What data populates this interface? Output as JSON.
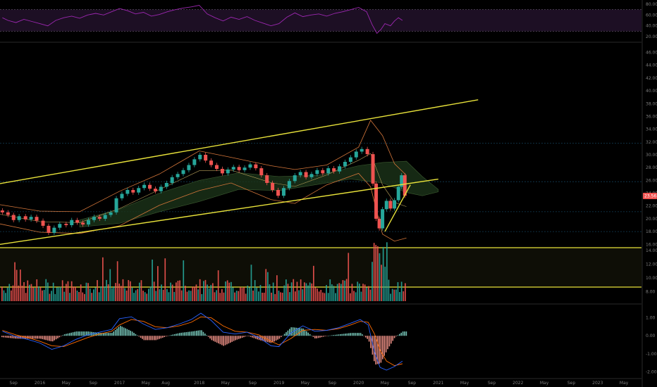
{
  "chart_data": {
    "type": "candlestick",
    "title": "",
    "colors": {
      "background": "#000000",
      "up": "#26a69a",
      "down": "#ef5350",
      "trendline": "#e8e23a",
      "rsi": "#9c27b0",
      "rsi_band": "#1d0f24",
      "bollinger": "#d4763a",
      "ichimoku_cloud": "#1b3319",
      "macd": "#2962ff",
      "signal": "#ff6d00",
      "grid": "#123c55"
    },
    "x_axis": {
      "labels": [
        "Sep",
        "2016",
        "May",
        "Sep",
        "2017",
        "May",
        "Aug",
        "2018",
        "May",
        "Sep",
        "2019",
        "May",
        "Sep",
        "2020",
        "May",
        "Sep",
        "2021",
        "May",
        "Sep",
        "2022",
        "May",
        "Sep",
        "2023",
        "May"
      ],
      "label_dates": [
        2015.67,
        2016.0,
        2016.33,
        2016.67,
        2017.0,
        2017.33,
        2017.58,
        2018.0,
        2018.33,
        2018.67,
        2019.0,
        2019.33,
        2019.67,
        2020.0,
        2020.33,
        2020.67,
        2021.0,
        2021.33,
        2021.67,
        2022.0,
        2022.33,
        2022.67,
        2023.0,
        2023.33
      ],
      "range": [
        2015.5,
        2023.55
      ]
    },
    "price_panel": {
      "y_ticks": [
        "46.00",
        "44.00",
        "42.00",
        "40.00",
        "38.00",
        "36.00",
        "34.00",
        "32.00",
        "30.00",
        "28.00",
        "26.00",
        "24.00",
        "22.00",
        "20.00",
        "18.00",
        "16.00",
        "14.00",
        "12.00",
        "10.00",
        "8.00"
      ],
      "y_values": [
        46,
        44,
        42,
        40,
        38,
        36,
        34,
        32,
        30,
        28,
        26,
        24,
        22,
        20,
        18,
        16,
        14,
        12,
        10,
        8
      ],
      "last_price": "23.56",
      "last_value": 23.56,
      "horizontal_levels": [
        31.8,
        25.8,
        21.1,
        18.0
      ],
      "trendlines": [
        {
          "from": [
            2015.5,
            25.5
          ],
          "to": [
            2021.5,
            38.6
          ]
        },
        {
          "from": [
            2015.5,
            16.0
          ],
          "to": [
            2021.0,
            26.2
          ]
        },
        {
          "from": [
            2020.33,
            18.0
          ],
          "to": [
            2020.65,
            25.3
          ]
        }
      ],
      "candles": [
        [
          2015.53,
          21.3,
          21.0
        ],
        [
          2015.6,
          21.0,
          20.6
        ],
        [
          2015.67,
          20.6,
          19.8
        ],
        [
          2015.74,
          19.8,
          20.4
        ],
        [
          2015.82,
          20.4,
          19.9
        ],
        [
          2015.89,
          19.9,
          20.3
        ],
        [
          2015.96,
          20.3,
          19.7
        ],
        [
          2016.04,
          19.7,
          18.9
        ],
        [
          2016.11,
          18.9,
          17.8
        ],
        [
          2016.18,
          17.8,
          18.6
        ],
        [
          2016.25,
          18.6,
          19.2
        ],
        [
          2016.33,
          19.2,
          19.0
        ],
        [
          2016.4,
          19.0,
          19.8
        ],
        [
          2016.47,
          19.8,
          19.4
        ],
        [
          2016.54,
          19.4,
          19.1
        ],
        [
          2016.61,
          19.1,
          19.8
        ],
        [
          2016.68,
          19.8,
          20.3
        ],
        [
          2016.75,
          20.3,
          20.0
        ],
        [
          2016.82,
          20.0,
          20.6
        ],
        [
          2016.89,
          20.6,
          21.0
        ],
        [
          2016.96,
          21.0,
          23.2
        ],
        [
          2017.03,
          23.2,
          23.9
        ],
        [
          2017.1,
          23.9,
          24.5
        ],
        [
          2017.17,
          24.5,
          24.1
        ],
        [
          2017.24,
          24.1,
          24.8
        ],
        [
          2017.31,
          24.8,
          25.3
        ],
        [
          2017.38,
          25.3,
          24.7
        ],
        [
          2017.45,
          24.7,
          24.3
        ],
        [
          2017.52,
          24.3,
          25.0
        ],
        [
          2017.59,
          25.0,
          25.6
        ],
        [
          2017.66,
          25.6,
          26.5
        ],
        [
          2017.73,
          26.5,
          27.0
        ],
        [
          2017.8,
          27.0,
          27.6
        ],
        [
          2017.87,
          27.6,
          28.4
        ],
        [
          2017.94,
          28.4,
          29.3
        ],
        [
          2018.01,
          29.3,
          30.0
        ],
        [
          2018.08,
          30.0,
          29.1
        ],
        [
          2018.15,
          29.1,
          28.4
        ],
        [
          2018.22,
          28.4,
          27.8
        ],
        [
          2018.29,
          27.8,
          27.1
        ],
        [
          2018.36,
          27.1,
          27.7
        ],
        [
          2018.43,
          27.7,
          28.1
        ],
        [
          2018.5,
          28.1,
          27.6
        ],
        [
          2018.57,
          27.6,
          28.0
        ],
        [
          2018.64,
          28.0,
          28.5
        ],
        [
          2018.71,
          28.5,
          27.9
        ],
        [
          2018.78,
          27.9,
          26.8
        ],
        [
          2018.85,
          26.8,
          25.6
        ],
        [
          2018.92,
          25.6,
          24.5
        ],
        [
          2018.99,
          24.5,
          23.6
        ],
        [
          2019.06,
          23.6,
          24.8
        ],
        [
          2019.13,
          24.8,
          25.9
        ],
        [
          2019.2,
          25.9,
          26.8
        ],
        [
          2019.27,
          26.8,
          27.3
        ],
        [
          2019.34,
          27.3,
          26.5
        ],
        [
          2019.41,
          26.5,
          27.0
        ],
        [
          2019.48,
          27.0,
          27.6
        ],
        [
          2019.55,
          27.6,
          27.1
        ],
        [
          2019.62,
          27.1,
          27.9
        ],
        [
          2019.69,
          27.9,
          27.4
        ],
        [
          2019.76,
          27.4,
          28.2
        ],
        [
          2019.83,
          28.2,
          28.9
        ],
        [
          2019.9,
          28.9,
          29.6
        ],
        [
          2019.97,
          29.6,
          30.5
        ],
        [
          2020.04,
          30.5,
          30.9
        ],
        [
          2020.11,
          30.9,
          30.1
        ],
        [
          2020.18,
          30.1,
          25.5
        ],
        [
          2020.22,
          25.5,
          20.0
        ],
        [
          2020.26,
          20.0,
          18.5
        ],
        [
          2020.3,
          18.5,
          21.5
        ],
        [
          2020.35,
          21.5,
          22.8
        ],
        [
          2020.4,
          22.8,
          21.6
        ],
        [
          2020.45,
          21.6,
          22.9
        ],
        [
          2020.5,
          22.9,
          25.0
        ],
        [
          2020.54,
          25.0,
          26.8
        ],
        [
          2020.58,
          26.8,
          23.6
        ]
      ],
      "bollinger_upper": [
        [
          2015.5,
          22.2
        ],
        [
          2016.0,
          21.2
        ],
        [
          2016.5,
          21.1
        ],
        [
          2017.0,
          24.3
        ],
        [
          2017.5,
          27.0
        ],
        [
          2018.0,
          30.6
        ],
        [
          2018.4,
          29.6
        ],
        [
          2018.9,
          28.3
        ],
        [
          2019.2,
          27.7
        ],
        [
          2019.6,
          28.4
        ],
        [
          2020.0,
          31.2
        ],
        [
          2020.15,
          35.4
        ],
        [
          2020.3,
          33.0
        ],
        [
          2020.45,
          28.6
        ],
        [
          2020.6,
          26.8
        ]
      ],
      "bollinger_lower": [
        [
          2015.5,
          19.2
        ],
        [
          2016.0,
          17.9
        ],
        [
          2016.5,
          17.7
        ],
        [
          2017.0,
          18.9
        ],
        [
          2017.5,
          22.1
        ],
        [
          2018.0,
          24.4
        ],
        [
          2018.4,
          25.6
        ],
        [
          2018.9,
          23.0
        ],
        [
          2019.2,
          22.4
        ],
        [
          2019.6,
          25.3
        ],
        [
          2020.0,
          27.1
        ],
        [
          2020.15,
          25.0
        ],
        [
          2020.3,
          17.6
        ],
        [
          2020.45,
          16.5
        ],
        [
          2020.6,
          17.0
        ]
      ],
      "ichimoku_top": [
        [
          2016.5,
          19.8
        ],
        [
          2017.0,
          21.5
        ],
        [
          2017.5,
          24.0
        ],
        [
          2018.0,
          26.0
        ],
        [
          2018.5,
          27.2
        ],
        [
          2019.0,
          26.6
        ],
        [
          2019.5,
          26.8
        ],
        [
          2020.0,
          28.3
        ],
        [
          2020.3,
          28.8
        ],
        [
          2020.6,
          29.0
        ],
        [
          2020.8,
          26.6
        ],
        [
          2021.0,
          24.6
        ]
      ],
      "ichimoku_bottom": [
        [
          2016.5,
          18.7
        ],
        [
          2017.0,
          19.3
        ],
        [
          2017.5,
          21.1
        ],
        [
          2018.0,
          22.7
        ],
        [
          2018.5,
          24.6
        ],
        [
          2019.0,
          24.4
        ],
        [
          2019.5,
          25.4
        ],
        [
          2019.9,
          26.2
        ],
        [
          2020.3,
          25.6
        ],
        [
          2020.6,
          24.1
        ],
        [
          2020.8,
          23.6
        ],
        [
          2021.0,
          24.2
        ]
      ]
    },
    "volume_panel": {
      "y_ticks": [
        "14.00",
        "12.00",
        "10.00",
        "8.00"
      ],
      "levels": [
        14.7,
        8.9
      ]
    },
    "rsi_panel": {
      "y_ticks": [
        "80.00",
        "60.00",
        "40.00",
        "20.00"
      ],
      "y_values": [
        80,
        60,
        40,
        20
      ],
      "band": [
        70,
        30
      ],
      "values": [
        [
          2015.53,
          55
        ],
        [
          2015.6,
          50
        ],
        [
          2015.7,
          46
        ],
        [
          2015.8,
          52
        ],
        [
          2015.9,
          48
        ],
        [
          2016.0,
          44
        ],
        [
          2016.1,
          40
        ],
        [
          2016.2,
          50
        ],
        [
          2016.3,
          55
        ],
        [
          2016.4,
          58
        ],
        [
          2016.5,
          54
        ],
        [
          2016.6,
          60
        ],
        [
          2016.7,
          63
        ],
        [
          2016.8,
          60
        ],
        [
          2016.9,
          66
        ],
        [
          2017.0,
          72
        ],
        [
          2017.1,
          68
        ],
        [
          2017.2,
          62
        ],
        [
          2017.3,
          65
        ],
        [
          2017.4,
          58
        ],
        [
          2017.5,
          61
        ],
        [
          2017.6,
          66
        ],
        [
          2017.7,
          70
        ],
        [
          2017.8,
          73
        ],
        [
          2017.9,
          75
        ],
        [
          2018.0,
          78
        ],
        [
          2018.1,
          62
        ],
        [
          2018.2,
          55
        ],
        [
          2018.3,
          49
        ],
        [
          2018.4,
          56
        ],
        [
          2018.5,
          52
        ],
        [
          2018.6,
          57
        ],
        [
          2018.7,
          50
        ],
        [
          2018.8,
          45
        ],
        [
          2018.9,
          40
        ],
        [
          2019.0,
          44
        ],
        [
          2019.1,
          56
        ],
        [
          2019.2,
          64
        ],
        [
          2019.3,
          57
        ],
        [
          2019.4,
          60
        ],
        [
          2019.5,
          62
        ],
        [
          2019.6,
          58
        ],
        [
          2019.7,
          63
        ],
        [
          2019.8,
          66
        ],
        [
          2019.9,
          70
        ],
        [
          2020.0,
          74
        ],
        [
          2020.1,
          66
        ],
        [
          2020.17,
          42
        ],
        [
          2020.23,
          26
        ],
        [
          2020.28,
          33
        ],
        [
          2020.33,
          44
        ],
        [
          2020.4,
          40
        ],
        [
          2020.45,
          49
        ],
        [
          2020.5,
          55
        ],
        [
          2020.55,
          50
        ]
      ]
    },
    "macd_panel": {
      "y_ticks": [
        "1.00",
        "0.00",
        "-1.00",
        "-2.00"
      ],
      "y_values": [
        1,
        0,
        -1,
        -2
      ],
      "macd": [
        [
          2015.53,
          0.25
        ],
        [
          2015.7,
          -0.05
        ],
        [
          2015.85,
          -0.2
        ],
        [
          2016.0,
          -0.4
        ],
        [
          2016.15,
          -0.75
        ],
        [
          2016.3,
          -0.55
        ],
        [
          2016.45,
          -0.2
        ],
        [
          2016.6,
          0.05
        ],
        [
          2016.75,
          0.2
        ],
        [
          2016.9,
          0.35
        ],
        [
          2017.0,
          0.95
        ],
        [
          2017.15,
          1.05
        ],
        [
          2017.3,
          0.65
        ],
        [
          2017.45,
          0.35
        ],
        [
          2017.6,
          0.45
        ],
        [
          2017.75,
          0.65
        ],
        [
          2017.9,
          0.9
        ],
        [
          2018.02,
          1.25
        ],
        [
          2018.15,
          0.85
        ],
        [
          2018.3,
          0.2
        ],
        [
          2018.45,
          0.1
        ],
        [
          2018.6,
          0.2
        ],
        [
          2018.75,
          -0.1
        ],
        [
          2018.9,
          -0.55
        ],
        [
          2019.0,
          -0.6
        ],
        [
          2019.15,
          0.15
        ],
        [
          2019.3,
          0.55
        ],
        [
          2019.45,
          0.25
        ],
        [
          2019.6,
          0.3
        ],
        [
          2019.75,
          0.45
        ],
        [
          2019.9,
          0.7
        ],
        [
          2020.02,
          0.9
        ],
        [
          2020.12,
          0.6
        ],
        [
          2020.2,
          -0.9
        ],
        [
          2020.27,
          -1.75
        ],
        [
          2020.35,
          -1.9
        ],
        [
          2020.45,
          -1.7
        ],
        [
          2020.55,
          -1.4
        ]
      ],
      "signal": [
        [
          2015.53,
          0.3
        ],
        [
          2015.7,
          0.05
        ],
        [
          2015.85,
          -0.1
        ],
        [
          2016.0,
          -0.3
        ],
        [
          2016.15,
          -0.55
        ],
        [
          2016.3,
          -0.6
        ],
        [
          2016.45,
          -0.35
        ],
        [
          2016.6,
          -0.1
        ],
        [
          2016.75,
          0.1
        ],
        [
          2016.9,
          0.25
        ],
        [
          2017.0,
          0.6
        ],
        [
          2017.15,
          0.9
        ],
        [
          2017.3,
          0.8
        ],
        [
          2017.45,
          0.5
        ],
        [
          2017.6,
          0.45
        ],
        [
          2017.75,
          0.55
        ],
        [
          2017.9,
          0.75
        ],
        [
          2018.02,
          1.05
        ],
        [
          2018.15,
          1.0
        ],
        [
          2018.3,
          0.55
        ],
        [
          2018.45,
          0.25
        ],
        [
          2018.6,
          0.2
        ],
        [
          2018.75,
          0.05
        ],
        [
          2018.9,
          -0.3
        ],
        [
          2019.0,
          -0.5
        ],
        [
          2019.15,
          -0.15
        ],
        [
          2019.3,
          0.3
        ],
        [
          2019.45,
          0.35
        ],
        [
          2019.6,
          0.3
        ],
        [
          2019.75,
          0.4
        ],
        [
          2019.9,
          0.6
        ],
        [
          2020.02,
          0.8
        ],
        [
          2020.12,
          0.75
        ],
        [
          2020.2,
          0.1
        ],
        [
          2020.27,
          -0.8
        ],
        [
          2020.35,
          -1.4
        ],
        [
          2020.45,
          -1.65
        ],
        [
          2020.55,
          -1.55
        ]
      ]
    }
  }
}
